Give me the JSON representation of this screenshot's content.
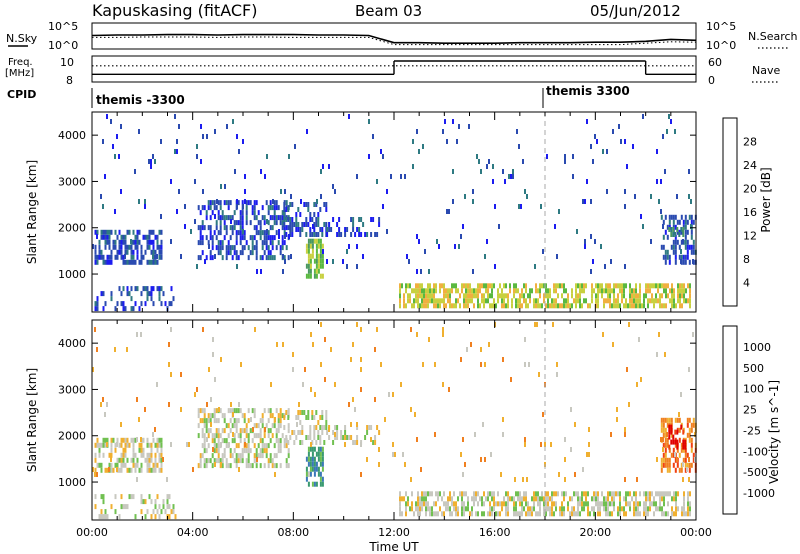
{
  "header": {
    "station": "Kapuskasing (fitACF)",
    "beam": "Beam 03",
    "date": "05/Jun/2012"
  },
  "chart_data": [
    {
      "type": "line",
      "panel": "noise",
      "left_label": "N.Sky",
      "right_label": "N.Search",
      "left_ticks": [
        "10^5",
        "10^0"
      ],
      "right_ticks": [
        "10^5",
        "10^0"
      ],
      "scale": "log",
      "x": [
        "00:00",
        "01:00",
        "02:00",
        "03:00",
        "04:00",
        "05:00",
        "06:00",
        "07:00",
        "08:00",
        "09:00",
        "10:00",
        "11:00",
        "12:00",
        "13:00",
        "14:00",
        "15:00",
        "16:00",
        "17:00",
        "18:00",
        "19:00",
        "20:00",
        "21:00",
        "22:00",
        "23:00",
        "24:00"
      ],
      "series": [
        {
          "name": "N.Sky",
          "values": [
            2.6,
            2.7,
            2.7,
            2.8,
            2.8,
            2.7,
            2.8,
            2.8,
            2.8,
            2.7,
            2.7,
            2.6,
            1.1,
            1.1,
            1.0,
            1.0,
            1.0,
            1.1,
            1.1,
            1.1,
            1.2,
            1.2,
            1.4,
            1.8,
            1.6
          ]
        },
        {
          "name": "N.Search",
          "values": [
            2.2,
            2.2,
            2.3,
            2.3,
            2.3,
            2.2,
            2.3,
            2.3,
            2.2,
            2.2,
            2.2,
            2.2,
            0.7,
            0.7,
            0.7,
            0.7,
            0.7,
            0.7,
            0.7,
            0.7,
            0.7,
            0.7,
            1.0,
            1.3,
            1.2
          ]
        }
      ]
    },
    {
      "type": "line",
      "panel": "frequency",
      "left_label_top": "Freq.",
      "left_label_bottom": "[MHz]",
      "right_label": "Nave",
      "left_ticks": [
        "10",
        "8"
      ],
      "right_ticks": [
        "60",
        "0"
      ],
      "frequency_mhz": [
        {
          "from": "00:00",
          "to": "12:00",
          "value": 8.8
        },
        {
          "from": "12:00",
          "to": "22:00",
          "value": 10.4
        },
        {
          "from": "22:00",
          "to": "24:00",
          "value": 8.8
        }
      ],
      "nave": 38
    },
    {
      "type": "table",
      "panel": "cpid",
      "label": "CPID",
      "segments": [
        {
          "from": "00:00",
          "to": "18:00",
          "label": "themis -3300"
        },
        {
          "from": "18:00",
          "to": "24:00",
          "label": "themis 3300"
        }
      ]
    },
    {
      "type": "heatmap",
      "panel": "power",
      "xlabel": "",
      "ylabel": "Slant Range [km]",
      "ylim": [
        180,
        4500
      ],
      "yticks": [
        "1000",
        "2000",
        "3000",
        "4000"
      ],
      "colorbar_label": "Power [dB]",
      "colorbar_ticks": [
        "28",
        "24",
        "20",
        "16",
        "12",
        "8",
        "4"
      ],
      "colors": [
        "#1c1cf0",
        "#2a4ab0",
        "#2e7a82",
        "#4a9860",
        "#5ab840",
        "#c8d040",
        "#f0b040",
        "#f08020",
        "#f04010",
        "#e01010"
      ],
      "regions": [
        {
          "x0": 0.1,
          "x1": 2.8,
          "r0": 1200,
          "r1": 1900,
          "level": 1,
          "density": 0.55
        },
        {
          "x0": 0.1,
          "x1": 3.3,
          "r0": 200,
          "r1": 650,
          "level": 1,
          "density": 0.35
        },
        {
          "x0": 4.2,
          "x1": 7.8,
          "r0": 1300,
          "r1": 2500,
          "level": 1,
          "density": 0.45
        },
        {
          "x0": 7.6,
          "x1": 9.3,
          "r0": 1800,
          "r1": 2500,
          "level": 1,
          "density": 0.45
        },
        {
          "x0": 8.5,
          "x1": 9.2,
          "r0": 900,
          "r1": 1700,
          "level": 4,
          "density": 0.7
        },
        {
          "x0": 9.3,
          "x1": 11.4,
          "r0": 1800,
          "r1": 2200,
          "level": 1,
          "density": 0.35
        },
        {
          "x0": 12.2,
          "x1": 23.8,
          "r0": 260,
          "r1": 700,
          "level": 5,
          "density": 0.65
        },
        {
          "x0": 22.6,
          "x1": 24.0,
          "r0": 1200,
          "r1": 2200,
          "level": 1,
          "density": 0.5
        },
        {
          "x0": 22.9,
          "x1": 23.6,
          "r0": 1800,
          "r1": 2000,
          "level": 3,
          "density": 0.6
        },
        {
          "x0": 0.0,
          "x1": 24.0,
          "r0": 1000,
          "r1": 4400,
          "level": 1,
          "density": 0.025
        }
      ]
    },
    {
      "type": "heatmap",
      "panel": "velocity",
      "xlabel": "Time UT",
      "ylabel": "Slant Range [km]",
      "ylim": [
        180,
        4500
      ],
      "yticks": [
        "1000",
        "2000",
        "3000",
        "4000"
      ],
      "xticks": [
        "00:00",
        "04:00",
        "08:00",
        "12:00",
        "16:00",
        "20:00",
        "00:00"
      ],
      "colorbar_label": "Velocity [m s^-1]",
      "colorbar_ticks": [
        "1000",
        "500",
        "100",
        "25",
        "-25",
        "-100",
        "-500",
        "-1000"
      ],
      "colors": [
        "#1f3fc0",
        "#3a78b8",
        "#3a9a70",
        "#70c050",
        "#c8c8c0",
        "#f0b030",
        "#f08020",
        "#f04010",
        "#e00000"
      ],
      "regions": [
        {
          "x0": 0.1,
          "x1": 2.8,
          "r0": 1200,
          "r1": 1900,
          "level": 4,
          "density": 0.55
        },
        {
          "x0": 0.1,
          "x1": 3.3,
          "r0": 200,
          "r1": 650,
          "level": 4,
          "density": 0.3
        },
        {
          "x0": 4.2,
          "x1": 7.8,
          "r0": 1300,
          "r1": 2500,
          "level": 4,
          "density": 0.45
        },
        {
          "x0": 7.6,
          "x1": 9.3,
          "r0": 1800,
          "r1": 2500,
          "level": 4,
          "density": 0.45
        },
        {
          "x0": 8.5,
          "x1": 9.2,
          "r0": 900,
          "r1": 1700,
          "level": 2,
          "density": 0.7
        },
        {
          "x0": 9.3,
          "x1": 11.4,
          "r0": 1800,
          "r1": 2200,
          "level": 4,
          "density": 0.35
        },
        {
          "x0": 12.2,
          "x1": 23.8,
          "r0": 260,
          "r1": 800,
          "level": 4,
          "density": 0.6
        },
        {
          "x0": 22.6,
          "x1": 24.0,
          "r0": 1200,
          "r1": 2300,
          "level": 6,
          "density": 0.5
        },
        {
          "x0": 22.9,
          "x1": 23.6,
          "r0": 1700,
          "r1": 2200,
          "level": 8,
          "density": 0.6
        },
        {
          "x0": 0.0,
          "x1": 24.0,
          "r0": 1000,
          "r1": 4400,
          "level": 5,
          "density": 0.025
        }
      ]
    }
  ]
}
